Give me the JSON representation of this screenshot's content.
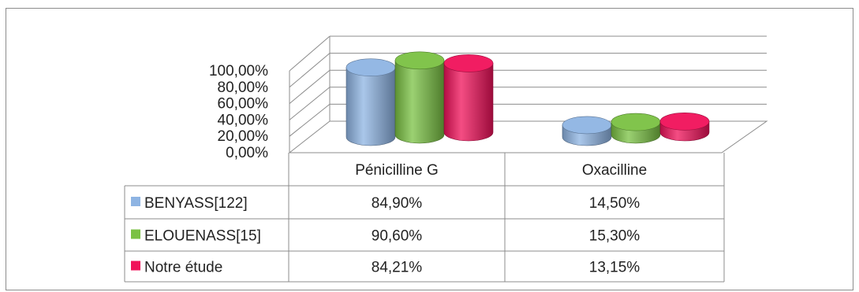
{
  "chart_data": {
    "type": "bar",
    "subtype": "3d-cylinder-with-data-table",
    "categories": [
      "Pénicilline G",
      "Oxacilline"
    ],
    "series": [
      {
        "name": "BENYASS[122]",
        "values": [
          84.9,
          14.5
        ],
        "labels": [
          "84,90%",
          "14,50%"
        ],
        "color": "#8eb4e3"
      },
      {
        "name": "ELOUENASS[15]",
        "values": [
          90.6,
          15.3
        ],
        "labels": [
          "90,60%",
          "15,30%"
        ],
        "color": "#7ac143"
      },
      {
        "name": "Notre étude",
        "values": [
          84.21,
          13.15
        ],
        "labels": [
          "84,21%",
          "13,15%"
        ],
        "color": "#f0115a"
      }
    ],
    "yticks": [
      "0,00%",
      "20,00%",
      "40,00%",
      "60,00%",
      "80,00%",
      "100,00%"
    ],
    "ylim": [
      0,
      100
    ],
    "grid": true,
    "legend": "data-table-left"
  }
}
